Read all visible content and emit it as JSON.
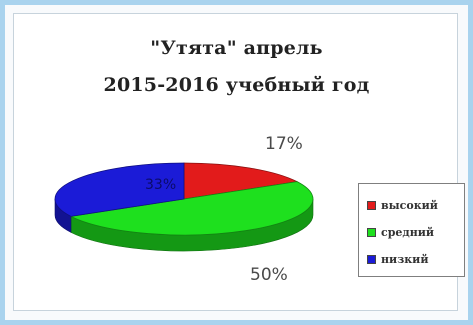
{
  "chart_data": {
    "type": "pie",
    "title": "\"Утята\" апрель",
    "subtitle": "2015-2016 учебный год",
    "categories": [
      "высокий",
      "средний",
      "низкий"
    ],
    "values": [
      17,
      50,
      33
    ],
    "data_labels": [
      "17%",
      "50%",
      "33%"
    ],
    "colors": [
      "#e21b1b",
      "#1ee01e",
      "#1b1bd7"
    ],
    "legend_position": "right",
    "is_3d": true
  }
}
